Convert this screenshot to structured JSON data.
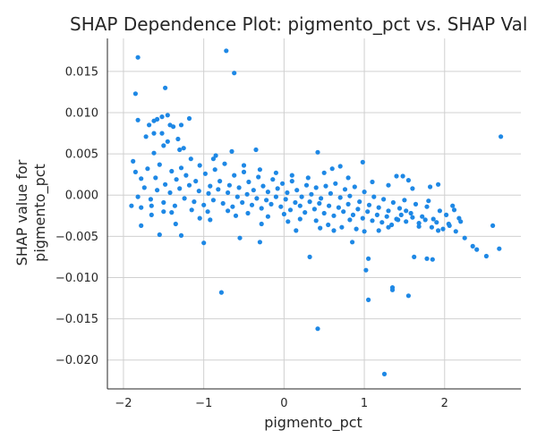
{
  "chart_data": {
    "type": "scatter",
    "title": "SHAP Dependence Plot: pigmento_pct vs. SHAP Val",
    "xlabel": "pigmento_pct",
    "ylabel_lines": [
      "SHAP value for",
      "pigmento_pct"
    ],
    "xlim": [
      -2.2,
      2.95
    ],
    "ylim": [
      -0.0235,
      0.019
    ],
    "xticks": [
      -2,
      -1,
      0,
      1,
      2
    ],
    "yticks": [
      0.015,
      0.01,
      0.005,
      0.0,
      -0.005,
      -0.01,
      -0.015,
      -0.02
    ],
    "xtick_labels": [
      "−2",
      "−1",
      "0",
      "1",
      "2"
    ],
    "ytick_labels": [
      "0.015",
      "0.010",
      "0.005",
      "0.000",
      "−0.005",
      "−0.010",
      "−0.015",
      "−0.020"
    ],
    "grid": true,
    "marker_color": "#1e88e5",
    "series": [
      {
        "points": [
          [
            -1.82,
            0.0167
          ],
          [
            -0.72,
            0.0175
          ],
          [
            -0.62,
            0.0148
          ],
          [
            -1.85,
            0.0123
          ],
          [
            -1.48,
            0.013
          ],
          [
            -1.52,
            0.0095
          ],
          [
            -1.45,
            0.0097
          ],
          [
            -1.58,
            0.0092
          ],
          [
            -1.62,
            0.009
          ],
          [
            -1.18,
            0.0093
          ],
          [
            -1.82,
            0.0091
          ],
          [
            -1.68,
            0.0085
          ],
          [
            -1.52,
            0.0075
          ],
          [
            -1.62,
            0.0075
          ],
          [
            -1.72,
            0.0071
          ],
          [
            -1.38,
            0.0083
          ],
          [
            -1.42,
            0.0085
          ],
          [
            -1.28,
            0.0085
          ],
          [
            -1.45,
            0.0065
          ],
          [
            -1.3,
            0.0055
          ],
          [
            -1.88,
            0.0041
          ],
          [
            -1.62,
            0.0051
          ],
          [
            -1.32,
            0.0068
          ],
          [
            -1.5,
            0.006
          ],
          [
            -1.25,
            0.0057
          ],
          [
            -0.85,
            0.0048
          ],
          [
            -0.65,
            0.0053
          ],
          [
            -0.35,
            0.0055
          ],
          [
            -0.88,
            0.0044
          ],
          [
            0.42,
            0.0052
          ],
          [
            0.7,
            0.0035
          ],
          [
            0.98,
            0.004
          ],
          [
            2.7,
            0.0071
          ],
          [
            1.48,
            0.0023
          ],
          [
            1.4,
            0.0023
          ],
          [
            1.55,
            0.0018
          ],
          [
            1.82,
            0.001
          ],
          [
            1.92,
            0.0013
          ],
          [
            1.8,
            -0.0007
          ],
          [
            1.52,
            -0.0019
          ],
          [
            1.42,
            -0.003
          ],
          [
            1.68,
            -0.0038
          ],
          [
            1.92,
            -0.0043
          ],
          [
            2.05,
            -0.0035
          ],
          [
            2.12,
            -0.0018
          ],
          [
            2.2,
            -0.0032
          ],
          [
            2.35,
            -0.0062
          ],
          [
            2.52,
            -0.0074
          ],
          [
            2.6,
            -0.0037
          ],
          [
            2.68,
            -0.0065
          ],
          [
            2.4,
            -0.0066
          ],
          [
            1.78,
            -0.0077
          ],
          [
            1.85,
            -0.0078
          ],
          [
            1.62,
            -0.0075
          ],
          [
            1.55,
            -0.0122
          ],
          [
            1.35,
            -0.0112
          ],
          [
            1.35,
            -0.0115
          ],
          [
            1.25,
            -0.0217
          ],
          [
            1.05,
            -0.0127
          ],
          [
            1.02,
            -0.0091
          ],
          [
            1.05,
            -0.0077
          ],
          [
            0.85,
            -0.0057
          ],
          [
            0.42,
            -0.0162
          ],
          [
            -0.78,
            -0.0118
          ],
          [
            -1.0,
            -0.0058
          ],
          [
            -0.55,
            -0.0052
          ],
          [
            -0.3,
            -0.0057
          ],
          [
            0.32,
            -0.0075
          ],
          [
            -1.28,
            -0.0049
          ],
          [
            -1.55,
            -0.0048
          ],
          [
            -1.78,
            -0.0037
          ],
          [
            -1.9,
            -0.0013
          ],
          [
            -1.78,
            -0.0015
          ],
          [
            -1.65,
            -0.0013
          ],
          [
            -1.5,
            -0.002
          ],
          [
            -1.35,
            -0.0035
          ],
          [
            -1.05,
            -0.0028
          ],
          [
            -0.92,
            -0.003
          ],
          [
            -0.6,
            -0.0025
          ],
          [
            -0.28,
            -0.0035
          ],
          [
            0.05,
            -0.0032
          ],
          [
            0.45,
            -0.004
          ],
          [
            0.82,
            -0.003
          ],
          [
            1.0,
            -0.0044
          ],
          [
            1.18,
            -0.0043
          ],
          [
            1.3,
            -0.0039
          ],
          [
            0.62,
            -0.0043
          ],
          [
            0.15,
            -0.0043
          ],
          [
            -1.85,
            0.0028
          ],
          [
            -1.78,
            0.002
          ],
          [
            -1.7,
            0.0032
          ],
          [
            -1.6,
            0.0021
          ],
          [
            -1.55,
            0.0037
          ],
          [
            -1.48,
            0.0013
          ],
          [
            -1.4,
            0.0029
          ],
          [
            -1.34,
            0.0019
          ],
          [
            -1.28,
            0.0033
          ],
          [
            -1.22,
            0.0024
          ],
          [
            -1.16,
            0.0044
          ],
          [
            -1.1,
            0.0017
          ],
          [
            -1.05,
            0.0036
          ],
          [
            -0.98,
            0.0026
          ],
          [
            -0.92,
            0.0011
          ],
          [
            -0.86,
            0.0031
          ],
          [
            -0.8,
            0.0017
          ],
          [
            -0.74,
            0.0038
          ],
          [
            -0.68,
            0.0012
          ],
          [
            -0.62,
            0.0024
          ],
          [
            -0.56,
            0.0009
          ],
          [
            -0.5,
            0.0028
          ],
          [
            -0.44,
            0.0016
          ],
          [
            -0.38,
            0.0006
          ],
          [
            -0.32,
            0.0022
          ],
          [
            -0.26,
            0.0011
          ],
          [
            -0.2,
            0.0004
          ],
          [
            -0.14,
            0.0019
          ],
          [
            -0.08,
            0.0008
          ],
          [
            -0.02,
            0.0014
          ],
          [
            0.04,
            0.0003
          ],
          [
            0.1,
            0.0017
          ],
          [
            0.16,
            0.0006
          ],
          [
            0.22,
            -0.0002
          ],
          [
            0.28,
            0.0012
          ],
          [
            0.34,
            0.0001
          ],
          [
            0.4,
            0.0009
          ],
          [
            0.46,
            -0.0004
          ],
          [
            0.52,
            0.0011
          ],
          [
            0.58,
            0.0002
          ],
          [
            0.64,
            0.0014
          ],
          [
            0.7,
            -0.0003
          ],
          [
            0.76,
            0.0007
          ],
          [
            0.82,
            -0.0001
          ],
          [
            0.88,
            0.001
          ],
          [
            0.94,
            -0.0008
          ],
          [
            1.0,
            0.0004
          ],
          [
            1.06,
            -0.0012
          ],
          [
            1.12,
            -0.0002
          ],
          [
            1.18,
            -0.0015
          ],
          [
            1.24,
            -0.0005
          ],
          [
            1.3,
            -0.0019
          ],
          [
            1.36,
            -0.0009
          ],
          [
            1.44,
            -0.0016
          ],
          [
            1.5,
            -0.0006
          ],
          [
            1.58,
            -0.0022
          ],
          [
            1.64,
            -0.0011
          ],
          [
            1.72,
            -0.0026
          ],
          [
            1.78,
            -0.0014
          ],
          [
            1.86,
            -0.0029
          ],
          [
            1.94,
            -0.0019
          ],
          [
            2.02,
            -0.0024
          ],
          [
            2.1,
            -0.0013
          ],
          [
            2.18,
            -0.0028
          ],
          [
            -1.82,
            -0.0002
          ],
          [
            -1.74,
            0.0009
          ],
          [
            -1.66,
            -0.0005
          ],
          [
            -1.58,
            0.0006
          ],
          [
            -1.5,
            -0.0009
          ],
          [
            -1.42,
            0.0003
          ],
          [
            -1.36,
            -0.0013
          ],
          [
            -1.3,
            0.0008
          ],
          [
            -1.24,
            -0.0004
          ],
          [
            -1.18,
            0.0012
          ],
          [
            -1.12,
            -0.0008
          ],
          [
            -1.06,
            0.0005
          ],
          [
            -1.0,
            -0.0012
          ],
          [
            -0.94,
            0.0002
          ],
          [
            -0.88,
            -0.0006
          ],
          [
            -0.82,
            0.0007
          ],
          [
            -0.76,
            -0.001
          ],
          [
            -0.7,
            0.0003
          ],
          [
            -0.64,
            -0.0014
          ],
          [
            -0.58,
            -0.0002
          ],
          [
            -0.52,
            -0.0009
          ],
          [
            -0.46,
            0.0001
          ],
          [
            -0.4,
            -0.0012
          ],
          [
            -0.34,
            -0.0004
          ],
          [
            -0.28,
            -0.0016
          ],
          [
            -0.22,
            -0.0006
          ],
          [
            -0.16,
            -0.0011
          ],
          [
            -0.1,
            -0.0002
          ],
          [
            -0.04,
            -0.0014
          ],
          [
            0.02,
            -0.0005
          ],
          [
            0.08,
            -0.0018
          ],
          [
            0.14,
            -0.0009
          ],
          [
            0.2,
            -0.0013
          ],
          [
            0.26,
            -0.0021
          ],
          [
            0.32,
            -0.0008
          ],
          [
            0.38,
            -0.0017
          ],
          [
            0.44,
            -0.001
          ],
          [
            0.5,
            -0.0022
          ],
          [
            0.56,
            -0.0013
          ],
          [
            0.62,
            -0.0025
          ],
          [
            0.68,
            -0.0015
          ],
          [
            0.74,
            -0.002
          ],
          [
            0.8,
            -0.0011
          ],
          [
            0.86,
            -0.0024
          ],
          [
            0.92,
            -0.0017
          ],
          [
            0.98,
            -0.0028
          ],
          [
            1.04,
            -0.002
          ],
          [
            1.1,
            -0.0031
          ],
          [
            1.16,
            -0.0024
          ],
          [
            1.22,
            -0.0033
          ],
          [
            1.28,
            -0.0026
          ],
          [
            1.34,
            -0.0036
          ],
          [
            1.4,
            -0.0029
          ],
          [
            1.46,
            -0.0024
          ],
          [
            1.52,
            -0.0032
          ],
          [
            1.6,
            -0.0027
          ],
          [
            1.68,
            -0.0034
          ],
          [
            1.76,
            -0.003
          ],
          [
            1.84,
            -0.0039
          ],
          [
            1.9,
            -0.0033
          ],
          [
            1.98,
            -0.0041
          ],
          [
            2.06,
            -0.0037
          ],
          [
            2.14,
            -0.0044
          ],
          [
            2.25,
            -0.0052
          ],
          [
            -0.5,
            0.0036
          ],
          [
            -0.3,
            0.0031
          ],
          [
            -0.1,
            0.0027
          ],
          [
            0.1,
            0.0024
          ],
          [
            0.3,
            0.0021
          ],
          [
            0.5,
            0.0027
          ],
          [
            0.6,
            0.0032
          ],
          [
            0.8,
            0.0021
          ],
          [
            1.1,
            0.0016
          ],
          [
            1.3,
            0.0012
          ],
          [
            1.6,
            0.0008
          ],
          [
            -0.2,
            -0.0026
          ],
          [
            0.0,
            -0.0023
          ],
          [
            0.2,
            -0.0029
          ],
          [
            0.4,
            -0.0031
          ],
          [
            0.55,
            -0.0036
          ],
          [
            0.72,
            -0.0039
          ],
          [
            0.9,
            -0.0041
          ],
          [
            -0.45,
            -0.0022
          ],
          [
            -0.7,
            -0.0019
          ],
          [
            -0.95,
            -0.002
          ],
          [
            -1.15,
            -0.0018
          ],
          [
            -1.4,
            -0.0021
          ],
          [
            -1.65,
            -0.0024
          ]
        ]
      }
    ]
  }
}
